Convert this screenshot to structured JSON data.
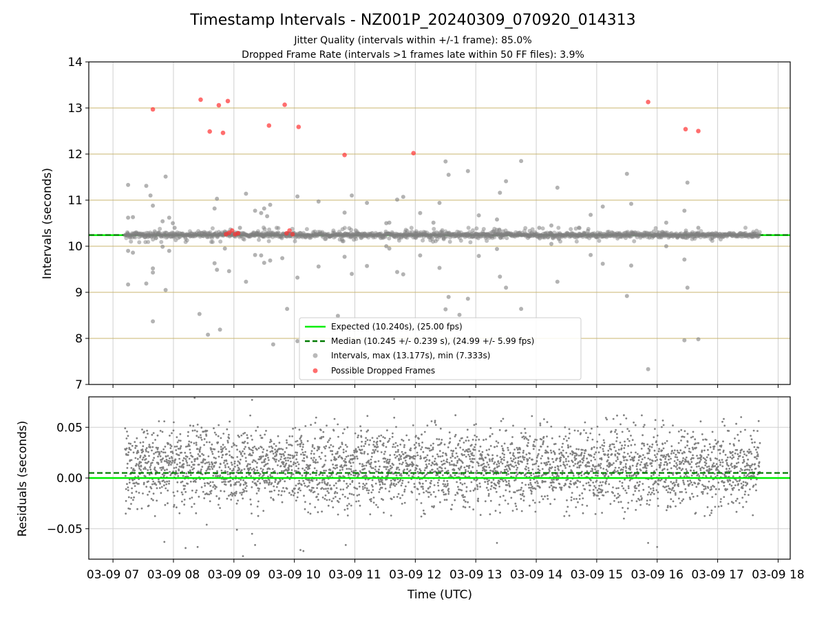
{
  "title": "Timestamp Intervals - NZ001P_20240309_070920_014313",
  "subtitle1": "Jitter Quality (intervals within +/-1 frame): 85.0%",
  "subtitle2": "Dropped Frame Rate (intervals >1 frames late within 50 FF files): 3.9%",
  "colors": {
    "expected": "#00ee00",
    "median": "#007a00",
    "intervals": "#808080",
    "dropped": "#ff3030",
    "grid_gray": "#cfcfcf",
    "grid_gold": "#c8b46e"
  },
  "chart_data": [
    {
      "type": "scatter",
      "xlabel": "",
      "ylabel": "Intervals (seconds)",
      "ylim": [
        7,
        14
      ],
      "yticks": [
        "7",
        "8",
        "9",
        "10",
        "11",
        "12",
        "13",
        "14"
      ],
      "xlim_hours_utc": [
        6.6,
        18.2
      ],
      "expected_y": 10.24,
      "median_y": 10.245,
      "grid": true,
      "legend": {
        "placement": "lower-center",
        "entries": [
          {
            "label": "Expected (10.240s), (25.00 fps)",
            "style": "solid-line"
          },
          {
            "label": "Median (10.245 +/- 0.239 s), (24.99 +/- 5.99 fps)",
            "style": "dashed-line"
          },
          {
            "label": "Intervals, max (13.177s), min (7.333s)",
            "style": "gray-dot"
          },
          {
            "label": "Possible Dropped Frames",
            "style": "red-dot"
          }
        ]
      },
      "series": [
        {
          "name": "Intervals, max (13.177s), min (7.333s)",
          "points": [
            [
              7.25,
              11.33
            ],
            [
              7.25,
              10.62
            ],
            [
              7.25,
              9.9
            ],
            [
              7.25,
              9.17
            ],
            [
              7.33,
              10.63
            ],
            [
              7.33,
              9.86
            ],
            [
              7.55,
              11.31
            ],
            [
              7.55,
              9.19
            ],
            [
              7.62,
              11.1
            ],
            [
              7.66,
              10.88
            ],
            [
              7.66,
              9.43
            ],
            [
              7.66,
              9.52
            ],
            [
              7.66,
              8.37
            ],
            [
              7.82,
              10.54
            ],
            [
              7.82,
              9.99
            ],
            [
              7.87,
              11.51
            ],
            [
              7.87,
              9.05
            ],
            [
              7.93,
              10.62
            ],
            [
              7.93,
              9.9
            ],
            [
              7.99,
              10.5
            ],
            [
              8.02,
              10.4
            ],
            [
              8.43,
              8.53
            ],
            [
              8.57,
              8.08
            ],
            [
              8.68,
              10.82
            ],
            [
              8.68,
              9.63
            ],
            [
              8.72,
              11.03
            ],
            [
              8.72,
              9.49
            ],
            [
              8.77,
              8.19
            ],
            [
              8.85,
              10.32
            ],
            [
              8.85,
              9.95
            ],
            [
              8.92,
              9.46
            ],
            [
              9.1,
              10.4
            ],
            [
              9.2,
              11.14
            ],
            [
              9.2,
              9.23
            ],
            [
              9.35,
              10.77
            ],
            [
              9.35,
              9.81
            ],
            [
              9.45,
              10.72
            ],
            [
              9.45,
              9.8
            ],
            [
              9.5,
              10.82
            ],
            [
              9.5,
              9.64
            ],
            [
              9.55,
              10.65
            ],
            [
              9.6,
              10.9
            ],
            [
              9.6,
              9.69
            ],
            [
              9.65,
              7.87
            ],
            [
              9.8,
              9.74
            ],
            [
              9.88,
              8.64
            ],
            [
              10.05,
              11.08
            ],
            [
              10.05,
              9.32
            ],
            [
              10.05,
              7.94
            ],
            [
              10.4,
              10.97
            ],
            [
              10.4,
              9.56
            ],
            [
              10.72,
              8.49
            ],
            [
              10.83,
              10.73
            ],
            [
              10.83,
              9.77
            ],
            [
              10.95,
              11.1
            ],
            [
              10.95,
              9.4
            ],
            [
              11.2,
              10.94
            ],
            [
              11.2,
              9.57
            ],
            [
              11.52,
              10.5
            ],
            [
              11.52,
              10.0
            ],
            [
              11.57,
              10.51
            ],
            [
              11.57,
              9.95
            ],
            [
              11.7,
              11.01
            ],
            [
              11.7,
              9.44
            ],
            [
              11.8,
              11.07
            ],
            [
              11.8,
              9.39
            ],
            [
              12.08,
              10.72
            ],
            [
              12.08,
              9.8
            ],
            [
              12.3,
              10.51
            ],
            [
              12.4,
              10.94
            ],
            [
              12.4,
              9.53
            ],
            [
              12.5,
              11.84
            ],
            [
              12.5,
              8.63
            ],
            [
              12.55,
              11.55
            ],
            [
              12.55,
              8.9
            ],
            [
              12.73,
              8.51
            ],
            [
              12.87,
              11.63
            ],
            [
              12.87,
              8.86
            ],
            [
              13.05,
              10.67
            ],
            [
              13.05,
              9.79
            ],
            [
              13.35,
              10.58
            ],
            [
              13.35,
              9.94
            ],
            [
              13.4,
              11.16
            ],
            [
              13.4,
              9.34
            ],
            [
              13.5,
              11.41
            ],
            [
              13.5,
              9.1
            ],
            [
              13.75,
              11.85
            ],
            [
              13.75,
              8.64
            ],
            [
              14.05,
              10.4
            ],
            [
              14.25,
              10.45
            ],
            [
              14.25,
              10.05
            ],
            [
              14.35,
              11.27
            ],
            [
              14.35,
              9.23
            ],
            [
              14.9,
              10.68
            ],
            [
              14.9,
              9.81
            ],
            [
              15.1,
              10.86
            ],
            [
              15.1,
              9.62
            ],
            [
              15.5,
              11.57
            ],
            [
              15.5,
              8.92
            ],
            [
              15.57,
              10.92
            ],
            [
              15.57,
              9.58
            ],
            [
              15.85,
              7.333
            ],
            [
              16.15,
              10.51
            ],
            [
              16.15,
              10.0
            ],
            [
              16.45,
              10.77
            ],
            [
              16.45,
              9.71
            ],
            [
              16.5,
              11.38
            ],
            [
              16.5,
              9.1
            ],
            [
              16.45,
              7.96
            ],
            [
              16.68,
              10.4
            ],
            [
              16.68,
              7.98
            ]
          ]
        },
        {
          "name": "Possible Dropped Frames",
          "points": [
            [
              7.66,
              12.97
            ],
            [
              8.45,
              13.18
            ],
            [
              8.6,
              12.49
            ],
            [
              8.75,
              13.06
            ],
            [
              8.82,
              12.46
            ],
            [
              8.9,
              13.15
            ],
            [
              9.58,
              12.62
            ],
            [
              9.84,
              13.07
            ],
            [
              10.07,
              12.59
            ],
            [
              10.83,
              11.98
            ],
            [
              11.97,
              12.02
            ],
            [
              15.85,
              13.13
            ],
            [
              16.47,
              12.54
            ],
            [
              16.68,
              12.5
            ],
            [
              8.87,
              10.26
            ],
            [
              8.92,
              10.29
            ],
            [
              8.97,
              10.34
            ],
            [
              9.02,
              10.26
            ],
            [
              9.07,
              10.28
            ],
            [
              9.87,
              10.28
            ],
            [
              9.92,
              10.34
            ],
            [
              9.97,
              10.26
            ]
          ]
        }
      ]
    },
    {
      "type": "scatter",
      "xlabel": "Time (UTC)",
      "ylabel": "Residuals (seconds)",
      "ylim": [
        -0.08,
        0.08
      ],
      "yticks": [
        "−0.05",
        "0.00",
        "0.05"
      ],
      "xlim_hours_utc": [
        6.6,
        18.2
      ],
      "xticks": [
        "03-09 07",
        "03-09 08",
        "03-09 09",
        "03-09 10",
        "03-09 11",
        "03-09 12",
        "03-09 13",
        "03-09 14",
        "03-09 15",
        "03-09 16",
        "03-09 17",
        "03-09 18"
      ],
      "expected_y": 0.0,
      "median_y": 0.005,
      "grid": true,
      "series": [
        {
          "name": "",
          "time_range_hours_utc": [
            7.2,
            17.7
          ],
          "point_count": 3700,
          "typical_range": [
            -0.03,
            0.05
          ],
          "outliers": [
            [
              8.35,
              0.079
            ],
            [
              9.3,
              0.077
            ],
            [
              11.65,
              0.078
            ],
            [
              12.9,
              0.08
            ],
            [
              7.85,
              -0.063
            ],
            [
              8.2,
              -0.069
            ],
            [
              8.4,
              -0.068
            ],
            [
              8.55,
              -0.046
            ],
            [
              9.05,
              -0.051
            ],
            [
              9.3,
              -0.055
            ],
            [
              9.35,
              -0.066
            ],
            [
              9.15,
              -0.077
            ],
            [
              10.1,
              -0.071
            ],
            [
              10.15,
              -0.072
            ],
            [
              10.85,
              -0.066
            ],
            [
              11.6,
              -0.037
            ],
            [
              12.1,
              -0.038
            ],
            [
              13.35,
              -0.064
            ],
            [
              15.45,
              -0.04
            ],
            [
              15.85,
              -0.064
            ],
            [
              16.0,
              -0.068
            ]
          ]
        }
      ]
    }
  ]
}
